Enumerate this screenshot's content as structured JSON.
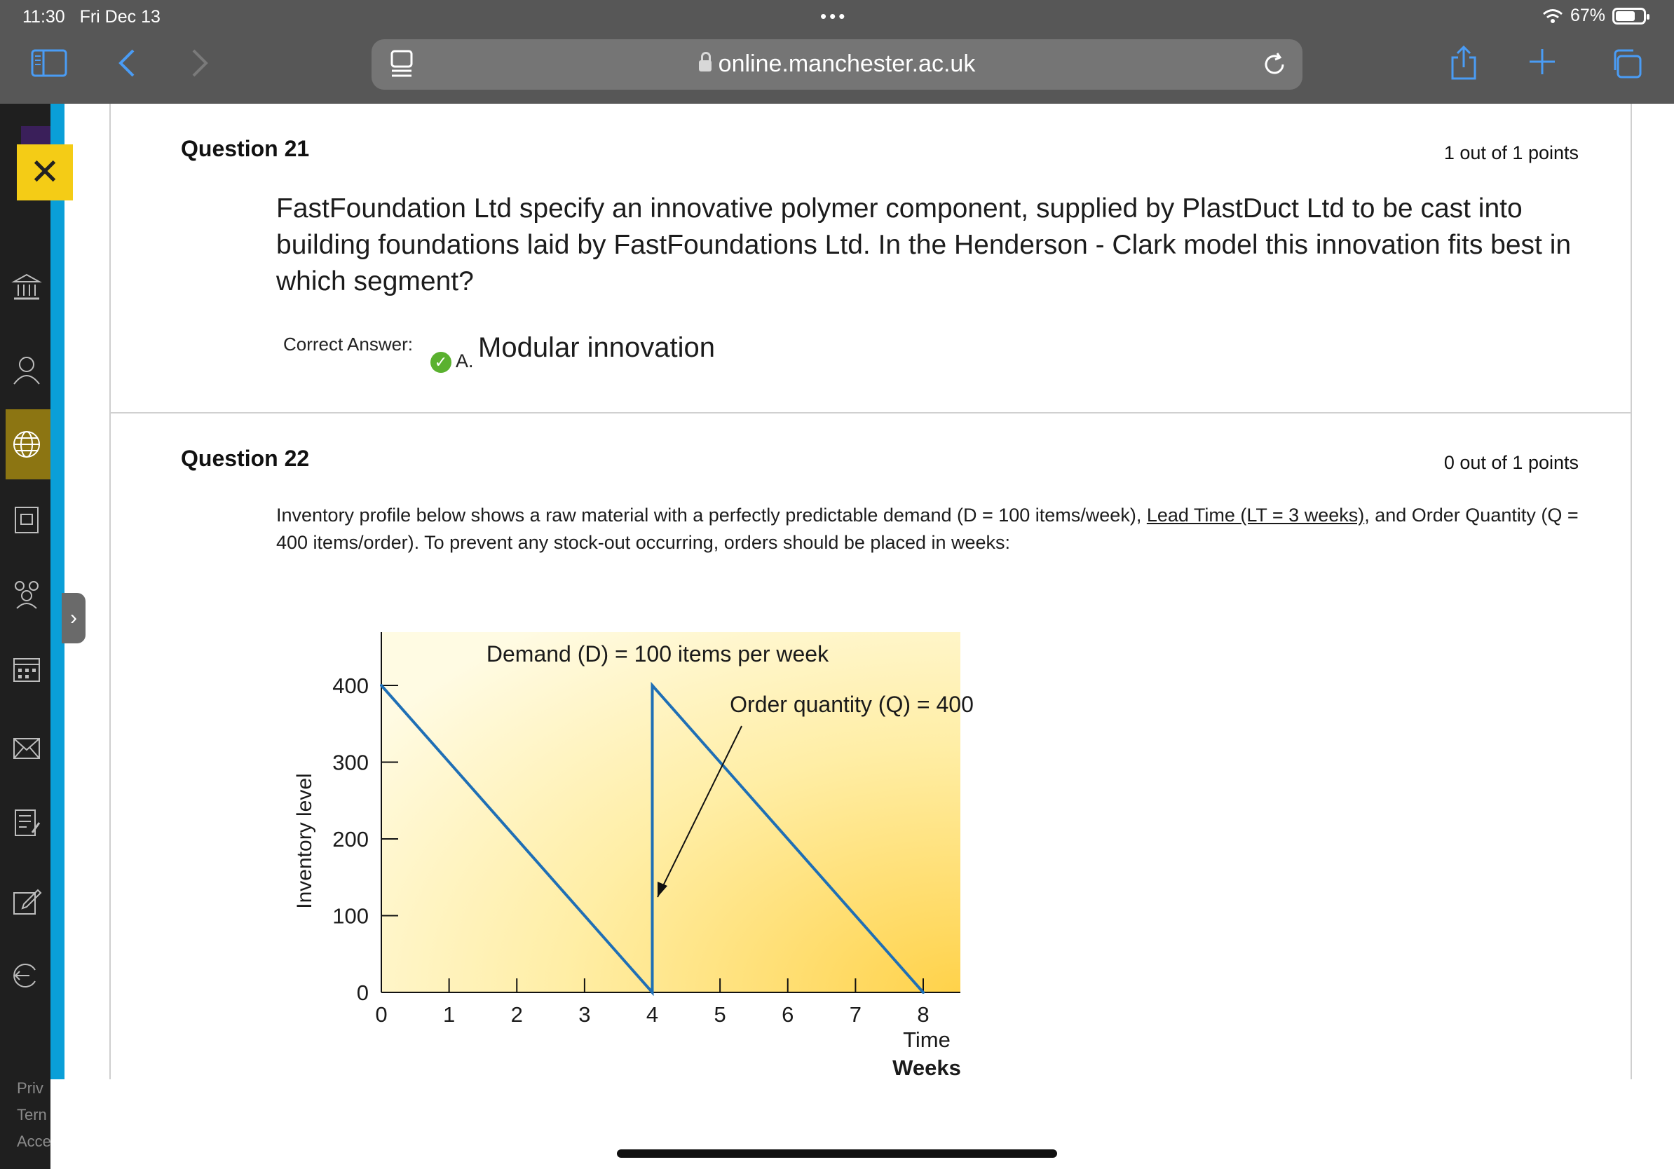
{
  "status": {
    "time": "11:30",
    "date": "Fri Dec 13",
    "battery": "67%",
    "battery_level": 0.67
  },
  "browser": {
    "url": "online.manchester.ac.uk"
  },
  "sidebar": {
    "items": [
      "institution-icon",
      "profile-icon",
      "globe-icon",
      "courses-icon",
      "groups-icon",
      "calendar-icon",
      "messages-icon",
      "grades-icon",
      "edit-icon",
      "sign-out-icon"
    ],
    "footer": [
      "Priv",
      "Tern",
      "Acce"
    ],
    "accent": "#0a9fd8",
    "close_color": "#f4cc16"
  },
  "q21": {
    "title": "Question 21",
    "points": "1 out of 1 points",
    "text": "FastFoundation Ltd specify an innovative polymer component, supplied by PlastDuct Ltd to be cast into building foundations laid by FastFoundations Ltd. In the Henderson - Clark model this innovation fits best in which segment?",
    "correct_label": "Correct Answer:",
    "answer_letter": "A.",
    "answer_text": "Modular innovation"
  },
  "q22": {
    "title": "Question 22",
    "points": "0 out of 1 points",
    "text_1": "Inventory profile below shows a raw material with a perfectly predictable demand (D = 100 items/week), ",
    "text_link": "Lead Time (LT = 3 weeks)",
    "text_2": ", and Order Quantity (Q = 400 items/order). To prevent any stock-out occurring, orders should be placed in weeks:"
  },
  "chart_data": {
    "type": "line",
    "x": [
      0,
      4,
      4,
      8
    ],
    "values": [
      400,
      0,
      400,
      0
    ],
    "xlim": [
      0,
      8
    ],
    "ylim": [
      0,
      400
    ],
    "xticks": [
      "0",
      "1",
      "2",
      "3",
      "4",
      "5",
      "6",
      "7",
      "8"
    ],
    "yticks": [
      "0",
      "100",
      "200",
      "300",
      "400"
    ],
    "ylabel": "Inventory level",
    "xlabel_1": "Time",
    "xlabel_2": "Weeks",
    "annotation_demand": "Demand (D) = 100 items per week",
    "annotation_order": "Order quantity (Q) = 400",
    "line_color": "#1f6fb5"
  }
}
